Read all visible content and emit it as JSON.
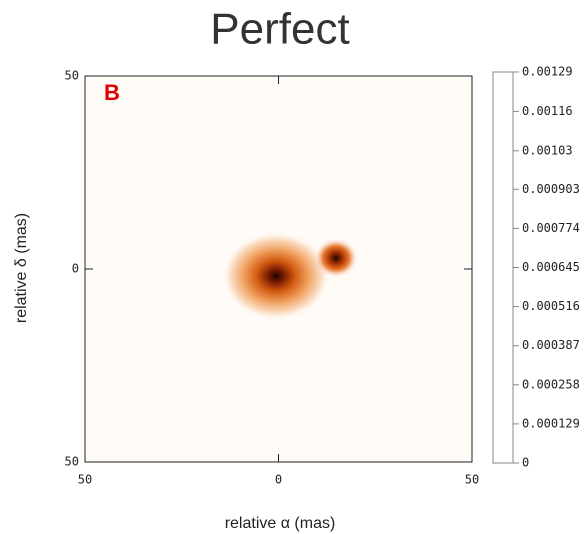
{
  "chart_data": {
    "type": "image",
    "title": "Perfect",
    "panel_label": "B",
    "x_label": "relative α (mas)",
    "y_label": "relative δ (mas)",
    "xlim": [
      50,
      -50
    ],
    "xticks": [
      50,
      0,
      {
        "value": -50,
        "label": "50"
      }
    ],
    "ylim": [
      -50,
      50
    ],
    "yticks": [
      {
        "value": -50,
        "label": "50"
      },
      0,
      50
    ],
    "colorbar_lim": [
      0,
      0.00129
    ],
    "colorbar_ticks": [
      0,
      0.000129,
      0.000258,
      0.000387,
      0.000516,
      0.000645,
      0.000774,
      0.000903,
      0.00103,
      0.00116,
      0.00129
    ]
  }
}
